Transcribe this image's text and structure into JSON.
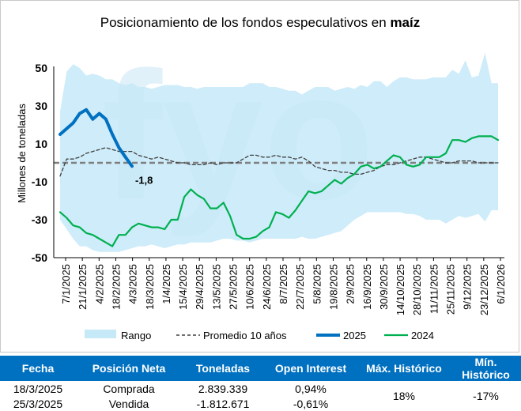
{
  "chart_data": {
    "type": "area",
    "title_main": "Posicionamiento de los fondos especulativos en ",
    "title_bold": "maíz",
    "ylabel": "Millones de toneladas",
    "xlabel": "",
    "ylim": [
      -50,
      50
    ],
    "yticks": [
      50,
      30,
      10,
      -10,
      -30,
      -50
    ],
    "x_labels": [
      "7/1/2025",
      "21/1/2025",
      "4/2/2025",
      "18/2/2025",
      "4/3/2025",
      "18/3/2025",
      "1/4/2025",
      "15/4/2025",
      "29/4/2025",
      "13/5/2025",
      "27/5/2025",
      "10/6/2025",
      "24/6/2025",
      "8/7/2025",
      "22/7/2025",
      "5/8/2025",
      "19/8/2025",
      "2/9/2025",
      "16/9/2025",
      "30/9/2025",
      "14/10/2025",
      "28/10/2025",
      "11/11/2025",
      "25/11/2025",
      "9/12/2025",
      "23/12/2025",
      "6/1/2026"
    ],
    "series": [
      {
        "name": "Rango",
        "color": "#c6e9f8",
        "upper": [
          27,
          48,
          52,
          50,
          46,
          47,
          46,
          44,
          44,
          42,
          41,
          42,
          40,
          40,
          39,
          40,
          41,
          41,
          41,
          40,
          40,
          39,
          40,
          40,
          40,
          40,
          40,
          40,
          40,
          42,
          42,
          42,
          40,
          40,
          39,
          38,
          38,
          36,
          38,
          40,
          40,
          40,
          38,
          39,
          40,
          39,
          41,
          40,
          43,
          43,
          40,
          43,
          45,
          45,
          44,
          44,
          44,
          45,
          45,
          45,
          49,
          47,
          54,
          45,
          46,
          58,
          42,
          42
        ],
        "lower": [
          -30,
          -35,
          -40,
          -44,
          -44,
          -46,
          -47,
          -47,
          -47,
          -47,
          -46,
          -45,
          -44,
          -44,
          -43,
          -44,
          -45,
          -44,
          -43,
          -43,
          -42,
          -42,
          -42,
          -42,
          -41,
          -40,
          -40,
          -41,
          -41,
          -42,
          -41,
          -40,
          -40,
          -40,
          -40,
          -40,
          -40,
          -39,
          -40,
          -40,
          -39,
          -38,
          -37,
          -36,
          -33,
          -30,
          -28,
          -26,
          -26,
          -26,
          -26,
          -26,
          -26,
          -27,
          -27,
          -28,
          -30,
          -30,
          -30,
          -32,
          -30,
          -28,
          -29,
          -28,
          -27,
          -31,
          -25,
          -25
        ]
      },
      {
        "name": "Promedio 10 años",
        "color": "#404040",
        "values": [
          -7,
          2,
          2,
          3,
          5,
          6,
          7,
          8,
          7,
          6,
          6,
          6,
          4,
          3,
          2,
          3,
          2,
          1,
          0,
          0,
          -1,
          -1,
          -1,
          0,
          -1,
          0,
          0,
          0,
          2,
          4,
          4,
          3,
          3,
          4,
          3,
          3,
          2,
          3,
          1,
          -2,
          -3,
          -4,
          -4,
          -5,
          -5,
          -6,
          -6,
          -5,
          -4,
          -2,
          -1,
          -1,
          0,
          1,
          2,
          3,
          3,
          2,
          1,
          0,
          0,
          1,
          1,
          1,
          0,
          0,
          0,
          0
        ]
      },
      {
        "name": "2025",
        "color": "#0070c0",
        "values": [
          15,
          18,
          21,
          26,
          28,
          23,
          26,
          23,
          15,
          8,
          3,
          -1.8
        ]
      },
      {
        "name": "2024",
        "color": "#00b050",
        "values": [
          -26,
          -29,
          -33,
          -34,
          -37,
          -38,
          -40,
          -42,
          -44,
          -38,
          -38,
          -34,
          -32,
          -33,
          -34,
          -34,
          -35,
          -30,
          -30,
          -18,
          -14,
          -17,
          -19,
          -24,
          -24,
          -21,
          -28,
          -38,
          -40,
          -40,
          -39,
          -36,
          -34,
          -26,
          -27,
          -29,
          -25,
          -20,
          -15,
          -16,
          -15,
          -12,
          -9,
          -11,
          -8,
          -6,
          -2,
          -1,
          -3,
          -2,
          1,
          4,
          3,
          -1,
          -2,
          -1,
          3,
          3,
          3,
          5,
          12,
          12,
          11,
          13,
          14,
          14,
          14,
          12
        ]
      }
    ],
    "baseline_value": 0,
    "annotation": {
      "text": "-1,8",
      "x_index": 11,
      "value": -1.8
    },
    "legend": [
      "Rango",
      "Promedio 10 años",
      "2025",
      "2024"
    ],
    "legend_position": "bottom",
    "watermark": "fyo"
  },
  "table": {
    "headers": [
      "Fecha",
      "Posición Neta",
      "Toneladas",
      "Open Interest",
      "Máx. Histórico",
      "Mín. Histórico"
    ],
    "rows": [
      [
        "18/3/2025",
        "Comprada",
        "2.839.339",
        "0,94%"
      ],
      [
        "25/3/2025",
        "Vendida",
        "-1.812.671",
        "-0,61%"
      ]
    ],
    "max_historic": "18%",
    "min_historic": "-17%"
  }
}
